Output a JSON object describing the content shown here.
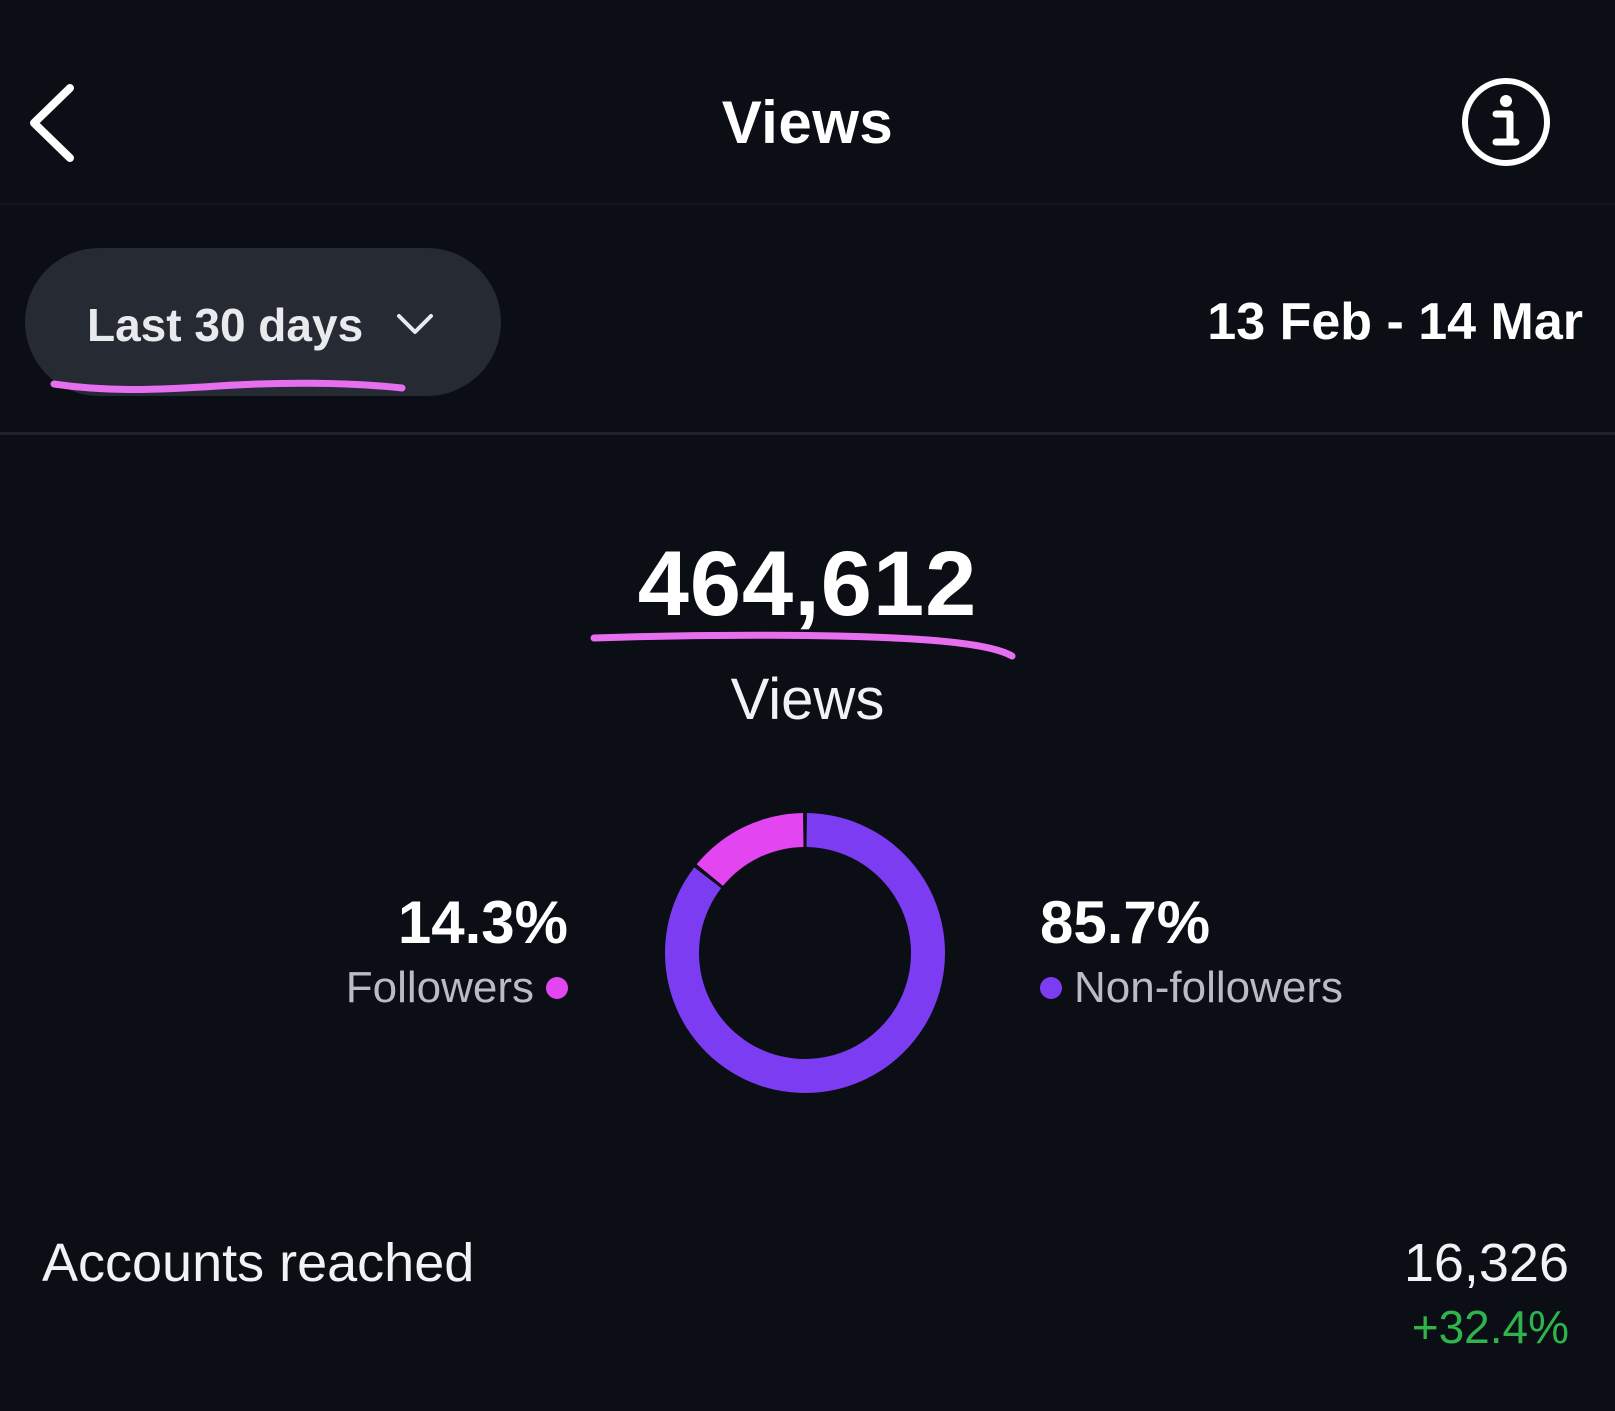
{
  "header": {
    "title": "Views",
    "back_icon": "chevron-left-icon",
    "info_icon": "info-icon"
  },
  "filter": {
    "range_label": "Last 30 days",
    "chevron_icon": "chevron-down-icon",
    "date_range": "13 Feb - 14 Mar"
  },
  "summary": {
    "total_value": "464,612",
    "total_label": "Views"
  },
  "breakdown": {
    "followers": {
      "percent_text": "14.3%",
      "label": "Followers"
    },
    "non_followers": {
      "percent_text": "85.7%",
      "label": "Non-followers"
    }
  },
  "chart_data": {
    "type": "pie",
    "categories": [
      "Followers",
      "Non-followers"
    ],
    "values": [
      14.3,
      85.7
    ],
    "colors": [
      "#e346f0",
      "#7c3df2"
    ]
  },
  "accounts_reached": {
    "label": "Accounts reached",
    "value": "16,326",
    "change": "+32.4%"
  },
  "colors": {
    "background": "#0b0e14",
    "pill": "#262a33",
    "followers": "#e346f0",
    "non_followers": "#7c3df2",
    "positive": "#2fb44c",
    "annotation": "#e66ff0"
  }
}
